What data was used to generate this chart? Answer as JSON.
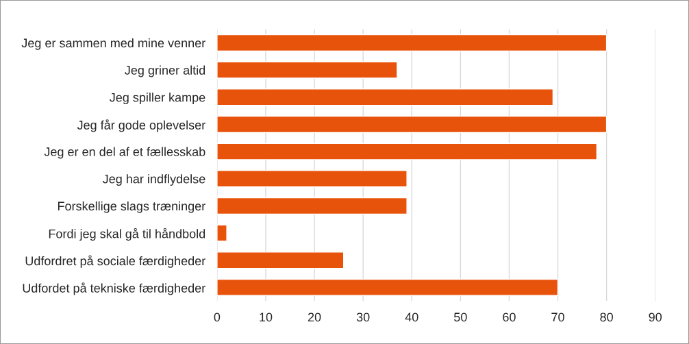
{
  "chart_data": {
    "type": "bar",
    "orientation": "horizontal",
    "categories": [
      "Jeg er sammen med mine venner",
      "Jeg griner altid",
      "Jeg spiller kampe",
      "Jeg får gode oplevelser",
      "Jeg er en del af et fællesskab",
      "Jeg har indflydelse",
      "Forskellige slags træninger",
      "Fordi jeg skal gå til håndbold",
      "Udfordret på sociale færdigheder",
      "Udfordet på tekniske færdigheder"
    ],
    "values": [
      80,
      37,
      69,
      80,
      78,
      39,
      39,
      2,
      26,
      70
    ],
    "color": "#e8530c",
    "xlim": [
      0,
      90
    ],
    "xticks": [
      0,
      10,
      20,
      30,
      40,
      50,
      60,
      70,
      80,
      90
    ],
    "grid": "x",
    "legend": false
  }
}
